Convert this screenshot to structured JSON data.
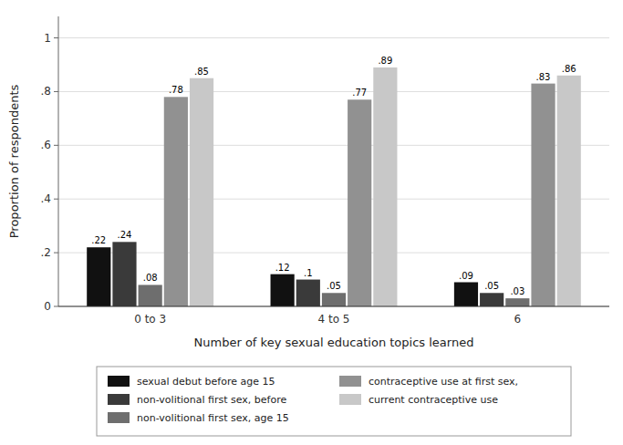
{
  "chart_data": {
    "type": "bar",
    "categories": [
      "0 to 3",
      "4 to 5",
      "6"
    ],
    "series": [
      {
        "name": "sexual debut before age 15",
        "color": "#111111",
        "values": [
          0.22,
          0.12,
          0.09
        ],
        "value_labels": [
          ".22",
          ".12",
          ".09"
        ]
      },
      {
        "name": "non-volitional first sex, before",
        "color": "#3a3a3a",
        "values": [
          0.24,
          0.1,
          0.05
        ],
        "value_labels": [
          ".24",
          ".1",
          ".05"
        ]
      },
      {
        "name": "non-volitional first sex, age 15",
        "color": "#6e6e6e",
        "values": [
          0.08,
          0.05,
          0.03
        ],
        "value_labels": [
          ".08",
          ".05",
          ".03"
        ]
      },
      {
        "name": "contraceptive use at first sex,",
        "color": "#919191",
        "values": [
          0.78,
          0.77,
          0.83
        ],
        "value_labels": [
          ".78",
          ".77",
          ".83"
        ]
      },
      {
        "name": "current contraceptive use",
        "color": "#c8c8c8",
        "values": [
          0.85,
          0.89,
          0.86
        ],
        "value_labels": [
          ".85",
          ".89",
          ".86"
        ]
      }
    ],
    "x_label": "Number of key sexual education topics learned",
    "y_label": "Proportion of respondents",
    "ylim": [
      0,
      1.08
    ],
    "yticks": [
      0,
      {
        "value": 0.2,
        "label": ".2"
      },
      {
        "value": 0.4,
        "label": ".4"
      },
      {
        "value": 0.6,
        "label": ".6"
      },
      {
        "value": 0.8,
        "label": ".8"
      },
      1
    ],
    "grid": true,
    "data_labels": true,
    "legend": "bottom"
  }
}
